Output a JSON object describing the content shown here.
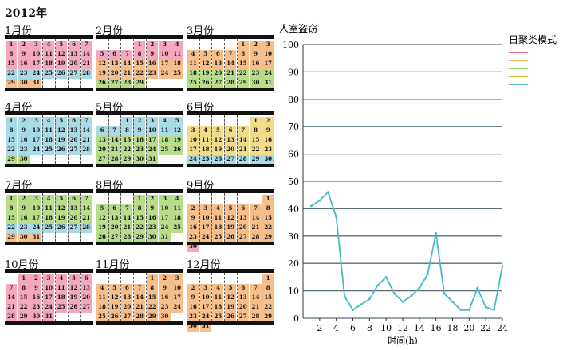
{
  "year_label": "2012年",
  "palette": {
    "pink": "#f4a7bd",
    "orange": "#f6be8a",
    "green": "#b8dc8a",
    "blue": "#a9dbe6",
    "yellow": "#f1dc8c",
    "teal": "#46b9c8",
    "empty": "#ffffff"
  },
  "months": [
    {
      "title": "1月份",
      "start": 0,
      "days": 31,
      "rows": [
        "pink",
        "pink",
        "pink",
        "blue",
        "orange"
      ]
    },
    {
      "title": "2月份",
      "start": 3,
      "days": 29,
      "rows": [
        "pink",
        "pink",
        "orange",
        "orange",
        "green"
      ]
    },
    {
      "title": "3月份",
      "start": 4,
      "days": 31,
      "rows": [
        "orange",
        "orange",
        "orange",
        "green",
        "green"
      ]
    },
    {
      "title": "4月份",
      "start": 0,
      "days": 30,
      "rows": [
        "blue",
        "blue",
        "blue",
        "blue",
        "green"
      ]
    },
    {
      "title": "5月份",
      "start": 2,
      "days": 31,
      "rows": [
        "blue",
        "blue",
        "green",
        "green",
        "green"
      ]
    },
    {
      "title": "6月份",
      "start": 5,
      "days": 30,
      "rows": [
        "yellow",
        "yellow",
        "yellow",
        "yellow",
        "blue"
      ]
    },
    {
      "title": "7月份",
      "start": 0,
      "days": 31,
      "rows": [
        "green",
        "green",
        "green",
        "blue",
        "orange"
      ]
    },
    {
      "title": "8月份",
      "start": 3,
      "days": 31,
      "rows": [
        "green",
        "green",
        "green",
        "green",
        "green"
      ]
    },
    {
      "title": "9月份",
      "start": 6,
      "days": 30,
      "rows": [
        "orange",
        "orange",
        "orange",
        "orange",
        "orange",
        "pink"
      ]
    },
    {
      "title": "10月份",
      "start": 1,
      "days": 31,
      "rows": [
        "pink",
        "pink",
        "pink",
        "pink",
        "pink"
      ]
    },
    {
      "title": "11月份",
      "start": 4,
      "days": 30,
      "rows": [
        "orange",
        "orange",
        "orange",
        "orange",
        "orange"
      ]
    },
    {
      "title": "12月份",
      "start": 6,
      "days": 31,
      "rows": [
        "orange",
        "orange",
        "orange",
        "orange",
        "orange",
        "orange"
      ]
    }
  ],
  "chart_data": {
    "type": "line",
    "title": "人室盗窃",
    "xlabel": "时间(h)",
    "ylabel": "",
    "xlim": [
      0,
      24
    ],
    "ylim": [
      0,
      100
    ],
    "xticks": [
      2,
      4,
      6,
      8,
      10,
      12,
      14,
      16,
      18,
      20,
      22,
      24
    ],
    "yticks": [
      0,
      10,
      20,
      30,
      40,
      50,
      60,
      70,
      80,
      90,
      100
    ],
    "grid": true,
    "legend_title": "日聚类模式",
    "legend_colors": [
      "#e9557d",
      "#f39c4c",
      "#8cc63f",
      "#c9b400",
      "#46b9c8"
    ],
    "series": [
      {
        "color": "#46b9c8",
        "x": [
          1,
          2,
          3,
          4,
          5,
          6,
          7,
          8,
          9,
          10,
          11,
          12,
          13,
          14,
          15,
          16,
          17,
          18,
          19,
          20,
          21,
          22,
          23,
          24
        ],
        "values": [
          41,
          43,
          46,
          37,
          8,
          3,
          5,
          7,
          12,
          15,
          9,
          6,
          8,
          11,
          16,
          31,
          9,
          6,
          3,
          3,
          11,
          4,
          3,
          19
        ]
      }
    ]
  }
}
